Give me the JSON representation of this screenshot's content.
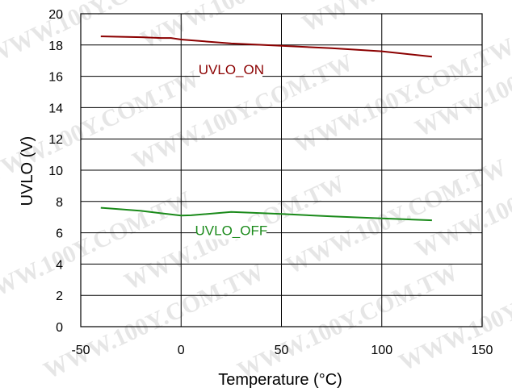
{
  "chart_data": {
    "type": "line",
    "title": "",
    "xlabel": "Temperature (°C)",
    "ylabel": "UVLO (V)",
    "xlim": [
      -50,
      150
    ],
    "ylim": [
      0,
      20
    ],
    "xticks": [
      -50,
      0,
      50,
      100,
      150
    ],
    "yticks": [
      0,
      2,
      4,
      6,
      8,
      10,
      12,
      14,
      16,
      18,
      20
    ],
    "grid": true,
    "legend": "none (series labeled inline on the lines)",
    "series": [
      {
        "name": "UVLO_ON",
        "color": "#8b0000",
        "x": [
          -40,
          -20,
          -10,
          -5,
          0,
          25,
          50,
          75,
          100,
          125
        ],
        "y": [
          18.55,
          18.5,
          18.45,
          18.45,
          18.35,
          18.1,
          17.95,
          17.8,
          17.6,
          17.25
        ]
      },
      {
        "name": "UVLO_OFF",
        "color": "#1a8a1a",
        "x": [
          -40,
          -20,
          -10,
          0,
          5,
          25,
          50,
          75,
          100,
          125
        ],
        "y": [
          7.6,
          7.4,
          7.25,
          7.1,
          7.12,
          7.33,
          7.2,
          7.05,
          6.92,
          6.8
        ]
      }
    ],
    "watermark": "WWW.100Y.COM.TW"
  }
}
